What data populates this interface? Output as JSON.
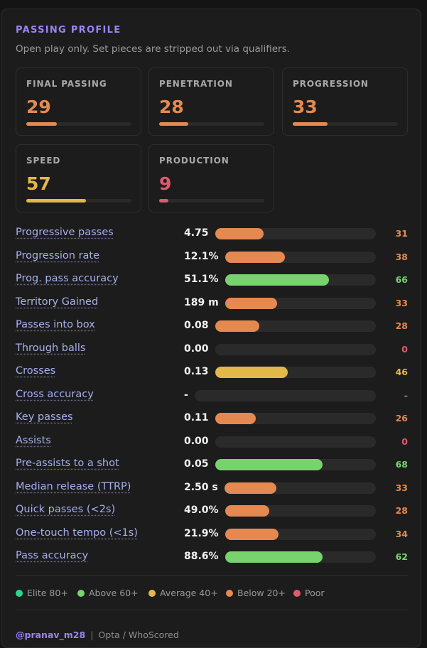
{
  "header": {
    "title": "PASSING PROFILE",
    "subtitle": "Open play only. Set pieces are stripped out via qualifiers."
  },
  "colors": {
    "accent": "#9b83f5",
    "elite": "#26d98c",
    "above": "#78d26e",
    "average": "#e3b84b",
    "below": "#e58950",
    "poor": "#e05a6c",
    "track": "#2a2a2a"
  },
  "tiles": [
    {
      "label": "FINAL PASSING",
      "value": "29",
      "level": 29,
      "tier": "below"
    },
    {
      "label": "PENETRATION",
      "value": "28",
      "level": 28,
      "tier": "below"
    },
    {
      "label": "PROGRESSION",
      "value": "33",
      "level": 33,
      "tier": "below"
    },
    {
      "label": "SPEED",
      "value": "57",
      "level": 57,
      "tier": "average"
    },
    {
      "label": "PRODUCTION",
      "value": "9",
      "level": 9,
      "tier": "poor"
    }
  ],
  "metrics": [
    {
      "label": "Progressive passes",
      "value": "4.75",
      "score": "31",
      "percentile": 31,
      "tier": "below"
    },
    {
      "label": "Progression rate",
      "value": "12.1%",
      "score": "38",
      "percentile": 38,
      "tier": "below"
    },
    {
      "label": "Prog. pass accuracy",
      "value": "51.1%",
      "score": "66",
      "percentile": 66,
      "tier": "above"
    },
    {
      "label": "Territory Gained",
      "value": "189 m",
      "score": "33",
      "percentile": 33,
      "tier": "below"
    },
    {
      "label": "Passes into box",
      "value": "0.08",
      "score": "28",
      "percentile": 28,
      "tier": "below"
    },
    {
      "label": "Through balls",
      "value": "0.00",
      "score": "0",
      "percentile": 0,
      "tier": "poor"
    },
    {
      "label": "Crosses",
      "value": "0.13",
      "score": "46",
      "percentile": 46,
      "tier": "average"
    },
    {
      "label": "Cross accuracy",
      "value": "-",
      "score": "-",
      "percentile": null,
      "tier": "none"
    },
    {
      "label": "Key passes",
      "value": "0.11",
      "score": "26",
      "percentile": 26,
      "tier": "below"
    },
    {
      "label": "Assists",
      "value": "0.00",
      "score": "0",
      "percentile": 0,
      "tier": "poor"
    },
    {
      "label": "Pre-assists to a shot",
      "value": "0.05",
      "score": "68",
      "percentile": 68,
      "tier": "above"
    },
    {
      "label": "Median release (TTRP)",
      "value": "2.50 s",
      "score": "33",
      "percentile": 33,
      "tier": "below"
    },
    {
      "label": "Quick passes (<2s)",
      "value": "49.0%",
      "score": "28",
      "percentile": 28,
      "tier": "below"
    },
    {
      "label": "One-touch tempo (<1s)",
      "value": "21.9%",
      "score": "34",
      "percentile": 34,
      "tier": "below"
    },
    {
      "label": "Pass accuracy",
      "value": "88.6%",
      "score": "62",
      "percentile": 62,
      "tier": "above"
    }
  ],
  "legend": [
    {
      "label": "Elite 80+",
      "tier": "elite"
    },
    {
      "label": "Above 60+",
      "tier": "above"
    },
    {
      "label": "Average 40+",
      "tier": "average"
    },
    {
      "label": "Below 20+",
      "tier": "below"
    },
    {
      "label": "Poor",
      "tier": "poor"
    }
  ],
  "footer": {
    "handle": "@pranav_m28",
    "separator": "|",
    "source": "Opta / WhoScored"
  }
}
